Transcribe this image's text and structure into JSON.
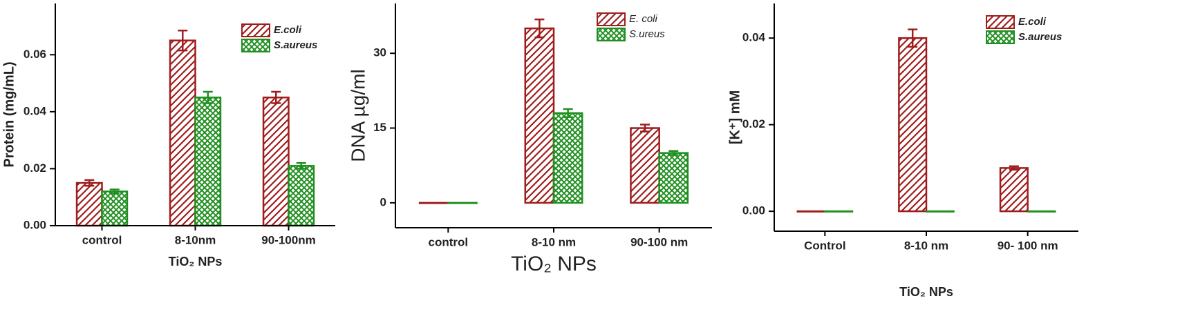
{
  "chart_data": [
    {
      "type": "bar",
      "ylabel": "Protein (mg/mL)",
      "xlabel": "TiO₂ NPs",
      "categories": [
        "control",
        "8-10nm",
        "90-100nm"
      ],
      "series": [
        {
          "name": "E.coli",
          "color": "#a01c1c",
          "values": [
            0.015,
            0.065,
            0.045
          ],
          "errors": [
            0.001,
            0.0035,
            0.002
          ]
        },
        {
          "name": "S.aureus",
          "color": "#1f8f1f",
          "values": [
            0.012,
            0.045,
            0.021
          ],
          "errors": [
            0.0007,
            0.002,
            0.001
          ]
        }
      ],
      "ylim": [
        0,
        0.078
      ],
      "yticks": [
        {
          "value": 0,
          "label": "0.00"
        },
        {
          "value": 0.02,
          "label": "0.02"
        },
        {
          "value": 0.04,
          "label": "0.04"
        },
        {
          "value": 0.06,
          "label": "0.06"
        }
      ],
      "legend": "upper right"
    },
    {
      "type": "bar",
      "ylabel": "DNA µg/ml",
      "xlabel": "TiO₂ NPs",
      "categories": [
        "control",
        "8-10 nm",
        "90-100 nm"
      ],
      "series": [
        {
          "name": "E. coli",
          "color": "#a01c1c",
          "values": [
            0,
            35,
            15
          ],
          "errors": [
            0,
            1.8,
            0.7
          ]
        },
        {
          "name": "S.ureus",
          "color": "#1f8f1f",
          "values": [
            0,
            18,
            10
          ],
          "errors": [
            0,
            0.8,
            0.4
          ]
        }
      ],
      "ylim": [
        -5,
        40
      ],
      "yticks": [
        0,
        15,
        30
      ],
      "legend": "upper right"
    },
    {
      "type": "bar",
      "ylabel": "[K⁺] mM",
      "xlabel": "TiO₂ NPs",
      "categories": [
        "Control",
        "8-10 nm",
        "90- 100 nm"
      ],
      "series": [
        {
          "name": "E.coli",
          "color": "#a01c1c",
          "values": [
            0,
            0.04,
            0.01
          ],
          "errors": [
            0,
            0.002,
            0.0004
          ]
        },
        {
          "name": "S.aureus",
          "color": "#1f8f1f",
          "values": [
            0,
            0,
            0
          ],
          "errors": [
            0,
            0,
            0
          ]
        }
      ],
      "ylim": [
        -0.0046,
        0.048
      ],
      "yticks": [
        {
          "value": 0,
          "label": "0.00"
        },
        {
          "value": 0.02,
          "label": "0.02"
        },
        {
          "value": 0.04,
          "label": "0.04"
        }
      ],
      "legend": "upper right"
    }
  ]
}
